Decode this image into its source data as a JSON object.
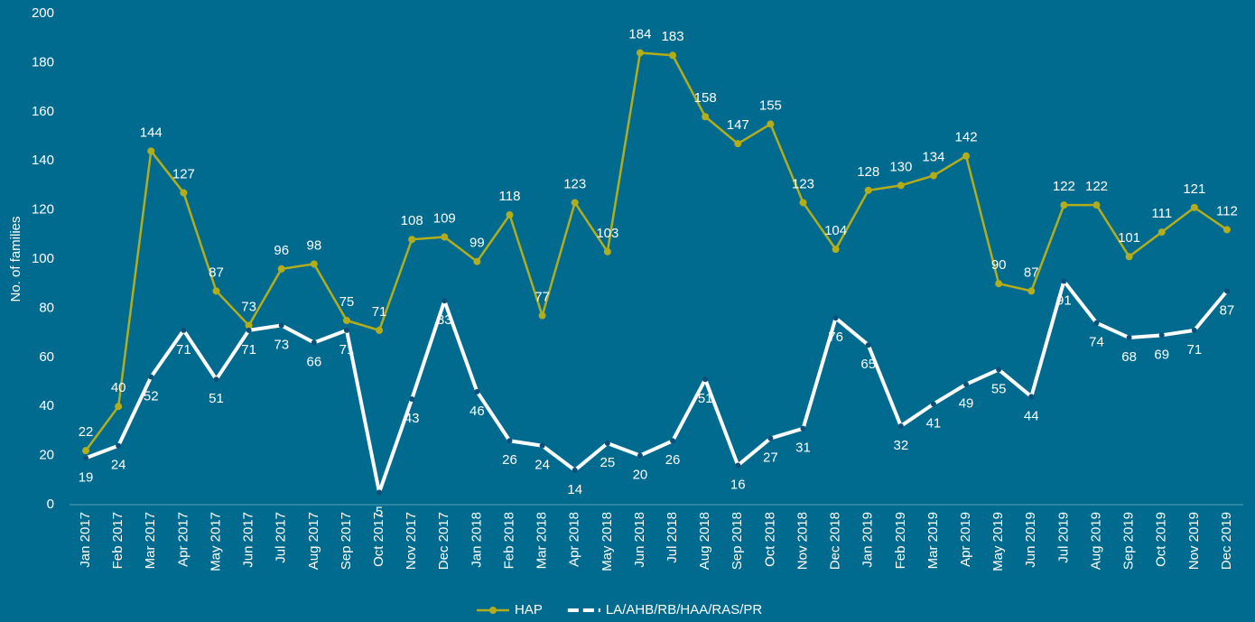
{
  "chart_data": {
    "type": "line",
    "y_axis_label": "No. of families",
    "categories": [
      "Jan 2017",
      "Feb 2017",
      "Mar 2017",
      "Apr 2017",
      "May 2017",
      "Jun 2017",
      "Jul 2017",
      "Aug 2017",
      "Sep 2017",
      "Oct 2017",
      "Nov 2017",
      "Dec 2017",
      "Jan 2018",
      "Feb 2018",
      "Mar 2018",
      "Apr 2018",
      "May 2018",
      "Jun 2018",
      "Jul 2018",
      "Aug 2018",
      "Sep 2018",
      "Oct 2018",
      "Nov 2018",
      "Dec 2018",
      "Jan 2019",
      "Feb 2019",
      "Mar 2019",
      "Apr 2019",
      "May 2019",
      "Jun 2019",
      "Jul 2019",
      "Aug 2019",
      "Sep 2019",
      "Oct 2019",
      "Nov 2019",
      "Dec 2019"
    ],
    "series": [
      {
        "name": "HAP",
        "color": "#b3ad1c",
        "values": [
          22,
          40,
          144,
          127,
          87,
          73,
          96,
          98,
          75,
          71,
          108,
          109,
          99,
          118,
          77,
          123,
          103,
          184,
          183,
          158,
          147,
          155,
          123,
          104,
          128,
          130,
          134,
          142,
          90,
          87,
          122,
          122,
          101,
          111,
          121,
          112
        ]
      },
      {
        "name": "LA/AHB/RB/HAA/RAS/PR",
        "color": "#ffffff",
        "values": [
          19,
          24,
          52,
          71,
          51,
          71,
          73,
          66,
          71,
          5,
          43,
          83,
          46,
          26,
          24,
          14,
          25,
          20,
          26,
          51,
          16,
          27,
          31,
          76,
          65,
          32,
          41,
          49,
          55,
          44,
          91,
          74,
          68,
          69,
          71,
          87
        ]
      }
    ],
    "ylim": [
      0,
      200
    ],
    "yticks": [
      0,
      20,
      40,
      60,
      80,
      100,
      120,
      140,
      160,
      180,
      200
    ],
    "legend": "bottom"
  }
}
